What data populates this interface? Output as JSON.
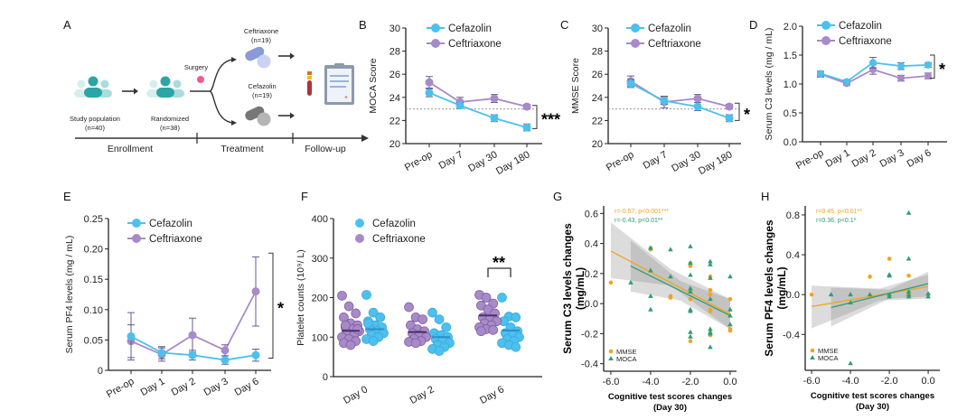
{
  "panel_labels": [
    "A",
    "B",
    "C",
    "D",
    "E",
    "F",
    "G",
    "H"
  ],
  "panel_a": {
    "study_population": "Study population",
    "study_n": "(n=40)",
    "randomized": "Randomized",
    "randomized_n": "(n=38)",
    "surgery": "Surgery",
    "ceftriaxone": "Ceftriaxone",
    "ceftriaxone_n": "(n=19)",
    "cefazolin": "Cefazolin",
    "cefazolin_n": "(n=19)",
    "timeline": [
      "Enrollment",
      "Treatment",
      "Follow-up"
    ]
  },
  "colors": {
    "cefazolin": "#4cc0ee",
    "ceftriaxone": "#a98ac8",
    "mmse": "#f0a51c",
    "moca": "#2f9e72"
  },
  "chart_data": [
    {
      "type": "line",
      "panel": "B",
      "ylabel": "MOCA Score",
      "ylim": [
        20,
        30
      ],
      "yticks": [
        "20",
        "22",
        "24",
        "26",
        "28",
        "30"
      ],
      "ytick_values": [
        20,
        22,
        24,
        26,
        28,
        30
      ],
      "categories": [
        "Pre-op",
        "Day 7",
        "Day 30",
        "Day 180"
      ],
      "threshold": 23,
      "series": [
        {
          "name": "Cefazolin",
          "values": [
            24.4,
            23.3,
            22.2,
            21.4
          ],
          "errors": [
            0.35,
            0.25,
            0.3,
            0.3
          ]
        },
        {
          "name": "Ceftriaxone",
          "values": [
            25.3,
            23.6,
            23.9,
            23.2
          ],
          "errors": [
            0.5,
            0.4,
            0.35,
            0.2
          ]
        }
      ],
      "bracket": [
        23.3,
        21.3
      ],
      "significance": "***"
    },
    {
      "type": "line",
      "panel": "C",
      "ylabel": "MMSE Score",
      "ylim": [
        20,
        30
      ],
      "yticks": [
        "20",
        "22",
        "24",
        "26",
        "28",
        "30"
      ],
      "ytick_values": [
        20,
        22,
        24,
        26,
        28,
        30
      ],
      "categories": [
        "Pre-op",
        "Day 7",
        "Day 30",
        "Day 180"
      ],
      "threshold": 23,
      "series": [
        {
          "name": "Cefazolin",
          "values": [
            25.2,
            23.7,
            23.2,
            22.2
          ],
          "errors": [
            0.35,
            0.3,
            0.35,
            0.3
          ]
        },
        {
          "name": "Ceftriaxone",
          "values": [
            25.4,
            23.6,
            23.9,
            23.2
          ],
          "errors": [
            0.45,
            0.5,
            0.35,
            0.2
          ]
        }
      ],
      "bracket": [
        23.5,
        22.0
      ],
      "significance": "*"
    },
    {
      "type": "line",
      "panel": "D",
      "ylabel": "Serum C3 levels  (mg / mL)",
      "ylim": [
        0,
        2
      ],
      "yticks": [
        "0.0",
        "0.5",
        "1.0",
        "1.5",
        "2.0"
      ],
      "ytick_values": [
        0,
        0.5,
        1,
        1.5,
        2
      ],
      "categories": [
        "Pre-op",
        "Day 1",
        "Day 2",
        "Day 3",
        "Day 6"
      ],
      "series": [
        {
          "name": "Cefazolin",
          "values": [
            1.18,
            1.04,
            1.37,
            1.31,
            1.33
          ],
          "errors": [
            0.04,
            0.03,
            0.09,
            0.06,
            0.04
          ]
        },
        {
          "name": "Ceftriaxone",
          "values": [
            1.17,
            1.01,
            1.25,
            1.1,
            1.14
          ],
          "errors": [
            0.05,
            0.03,
            0.08,
            0.05,
            0.05
          ]
        }
      ],
      "bracket": [
        1.5,
        1.1
      ],
      "significance": "*"
    },
    {
      "type": "line",
      "panel": "E",
      "ylabel": "Serum PF4 levels  (mg / mL)",
      "ylim": [
        0,
        0.25
      ],
      "yticks": [
        "0",
        "0.05",
        "0.10",
        "0.15",
        "0.20",
        "0.25"
      ],
      "ytick_values": [
        0,
        0.05,
        0.1,
        0.15,
        0.2,
        0.25
      ],
      "categories": [
        "Pre-op",
        "Day 1",
        "Day 2",
        "Day 3",
        "Day 6"
      ],
      "series": [
        {
          "name": "Cefazolin",
          "values": [
            0.056,
            0.029,
            0.025,
            0.017,
            0.025
          ],
          "errors": [
            0.039,
            0.01,
            0.008,
            0.007,
            0.01
          ]
        },
        {
          "name": "Ceftriaxone",
          "values": [
            0.048,
            0.026,
            0.058,
            0.033,
            0.13
          ],
          "errors": [
            0.027,
            0.011,
            0.028,
            0.009,
            0.057
          ]
        }
      ],
      "bracket": [
        0.193,
        0.02
      ],
      "significance": "*"
    },
    {
      "type": "scatter",
      "panel": "F",
      "ylabel": "Platelet counts (10⁹/ L)",
      "ylim": [
        0,
        400
      ],
      "yticks": [
        "0",
        "100",
        "200",
        "300",
        "400"
      ],
      "ytick_values": [
        0,
        100,
        200,
        300,
        400
      ],
      "categories": [
        "Day 0",
        "Day 2",
        "Day 6"
      ],
      "series": [
        {
          "name": "Cefazolin",
          "groups": [
            [
              207,
              162,
              150,
              140,
              130,
              125,
              120,
              115,
              110,
              105,
              100,
              95,
              90,
              150,
              135
            ],
            [
              162,
              145,
              125,
              110,
              105,
              100,
              95,
              90,
              85,
              80,
              75,
              70,
              65
            ],
            [
              200,
              152,
              150,
              140,
              125,
              115,
              110,
              105,
              100,
              95,
              90,
              85,
              80,
              75
            ]
          ],
          "means": [
            120,
            100,
            117
          ]
        },
        {
          "name": "Ceftriaxone",
          "groups": [
            [
              205,
              178,
              160,
              150,
              135,
              130,
              125,
              120,
              115,
              110,
              105,
              100,
              95,
              90,
              85,
              80,
              120,
              130
            ],
            [
              176,
              150,
              145,
              130,
              120,
              115,
              110,
              105,
              100,
              95,
              90,
              88,
              85
            ],
            [
              207,
              200,
              185,
              180,
              170,
              160,
              150,
              145,
              140,
              135,
              130,
              125,
              120,
              118,
              115
            ]
          ],
          "means": [
            116,
            113,
            155
          ]
        }
      ],
      "significance": "**"
    },
    {
      "type": "scatter",
      "panel": "G",
      "xlabel": "Cognitive test scores changes",
      "xlabel2": "(Day 30)",
      "ylabel": "Serum C3 levels changes",
      "ylabel2": "(mg/mL)",
      "xlim": [
        -6.36,
        0.32
      ],
      "ylim": [
        -0.45,
        0.65
      ],
      "xticks": [
        "-6.0",
        "-4.0",
        "-2.0",
        "0.0"
      ],
      "xtick_values": [
        -6,
        -4,
        -2,
        0
      ],
      "yticks": [
        "-0.4",
        "-0.2",
        "0.0",
        "0.2",
        "0.4",
        "0.6"
      ],
      "ytick_values": [
        -0.4,
        -0.2,
        0,
        0.2,
        0.4,
        0.6
      ],
      "annotations": [
        {
          "series": "MMSE",
          "text": "r=-0.57, p<0.001***"
        },
        {
          "series": "MOCA",
          "text": "r=-0.43, p<0.01**"
        }
      ],
      "series": [
        {
          "name": "MMSE",
          "fit": [
            [
              -6,
              0.35
            ],
            [
              0,
              -0.07
            ]
          ],
          "band": {
            "x": [
              -6,
              -3,
              0
            ],
            "lo": [
              0.17,
              0.12,
              -0.17
            ],
            "hi": [
              0.54,
              0.23,
              0.03
            ]
          },
          "points": [
            [
              -6,
              0.14
            ],
            [
              -4,
              0.36
            ],
            [
              -4,
              0.37
            ],
            [
              -3,
              0.05
            ],
            [
              -3,
              0.04
            ],
            [
              -2,
              0.25
            ],
            [
              -2,
              0.27
            ],
            [
              -2,
              0.03
            ],
            [
              -2,
              -0.25
            ],
            [
              -1,
              0.18
            ],
            [
              -1,
              0.09
            ],
            [
              -1,
              0.06
            ],
            [
              -1,
              -0.04
            ],
            [
              -1,
              -0.05
            ],
            [
              -1,
              -0.21
            ],
            [
              0,
              0.03
            ],
            [
              0,
              -0.17
            ],
            [
              0,
              -0.18
            ]
          ]
        },
        {
          "name": "MOCA",
          "fit": [
            [
              -5,
              0.25
            ],
            [
              0,
              -0.08
            ]
          ],
          "band": {
            "x": [
              -5,
              -2.5,
              0
            ],
            "lo": [
              0.08,
              0.02,
              -0.17
            ],
            "hi": [
              0.42,
              0.15,
              0.03
            ]
          },
          "points": [
            [
              -5,
              0.14
            ],
            [
              -4,
              0.37
            ],
            [
              -4,
              0.22
            ],
            [
              -4,
              0.05
            ],
            [
              -4,
              -0.04
            ],
            [
              -3,
              0.36
            ],
            [
              -3,
              0.18
            ],
            [
              -2,
              0.38
            ],
            [
              -2,
              0.27
            ],
            [
              -2,
              0.19
            ],
            [
              -2,
              0.1
            ],
            [
              -2,
              0.08
            ],
            [
              -2,
              -0.04
            ],
            [
              -2,
              -0.05
            ],
            [
              -2,
              -0.19
            ],
            [
              -2,
              -0.22
            ],
            [
              -1,
              0.28
            ],
            [
              -1,
              0.26
            ],
            [
              -1,
              0.17
            ],
            [
              -1,
              0.03
            ],
            [
              -1,
              -0.17
            ],
            [
              -1,
              -0.19
            ],
            [
              -1,
              -0.2
            ],
            [
              -1,
              -0.29
            ],
            [
              0,
              0.18
            ],
            [
              0,
              -0.04
            ],
            [
              0,
              -0.08
            ],
            [
              0,
              -0.14
            ]
          ]
        }
      ]
    },
    {
      "type": "scatter",
      "panel": "H",
      "xlabel": "Cognitive test scores changes",
      "xlabel2": "(Day 30)",
      "ylabel": "Serum PF4 levels changes",
      "ylabel2": "(mg/mL)",
      "xlim": [
        -6.33,
        0.6
      ],
      "ylim": [
        -0.76,
        0.89
      ],
      "xticks": [
        "-6.0",
        "-4.0",
        "-2.0",
        "0.0"
      ],
      "xtick_values": [
        -6,
        -4,
        -2,
        0
      ],
      "yticks": [
        "-0.4",
        "0.0",
        "0.4",
        "0.8"
      ],
      "ytick_values": [
        -0.4,
        0,
        0.4,
        0.8
      ],
      "annotations": [
        {
          "series": "MMSE",
          "text": "r=0.45, p<0.01**"
        },
        {
          "series": "MOCA",
          "text": "r=0.36, p<0.1*"
        }
      ],
      "series": [
        {
          "name": "MMSE",
          "fit": [
            [
              -6,
              -0.12
            ],
            [
              0,
              0.08
            ]
          ],
          "band": {
            "x": [
              -6,
              -2.5,
              0
            ],
            "lo": [
              -0.34,
              -0.06,
              -0.04
            ],
            "hi": [
              0.09,
              0.06,
              0.2
            ]
          },
          "points": [
            [
              -6,
              0
            ],
            [
              -3,
              0.18
            ],
            [
              -2,
              0.36
            ],
            [
              -1,
              0.19
            ],
            [
              -2,
              0
            ],
            [
              -1,
              0
            ],
            [
              0,
              0
            ]
          ]
        },
        {
          "name": "MOCA",
          "fit": [
            [
              -5,
              -0.13
            ],
            [
              0,
              0.11
            ]
          ],
          "band": {
            "x": [
              -5,
              -2,
              0
            ],
            "lo": [
              -0.32,
              -0.04,
              -0.02
            ],
            "hi": [
              0.07,
              0.05,
              0.23
            ]
          },
          "points": [
            [
              -5,
              0
            ],
            [
              -4,
              0
            ],
            [
              -4,
              -0.08
            ],
            [
              -3,
              0
            ],
            [
              -2,
              0.19
            ],
            [
              -2,
              0.2
            ],
            [
              -2,
              0
            ],
            [
              -2,
              -0.02
            ],
            [
              -1,
              0.82
            ],
            [
              -1,
              0.36
            ],
            [
              -1,
              0.03
            ],
            [
              -1,
              0
            ],
            [
              -1,
              -0.02
            ],
            [
              0,
              0.01
            ],
            [
              0,
              -0.02
            ],
            [
              -4,
              -0.69
            ]
          ]
        }
      ]
    }
  ]
}
